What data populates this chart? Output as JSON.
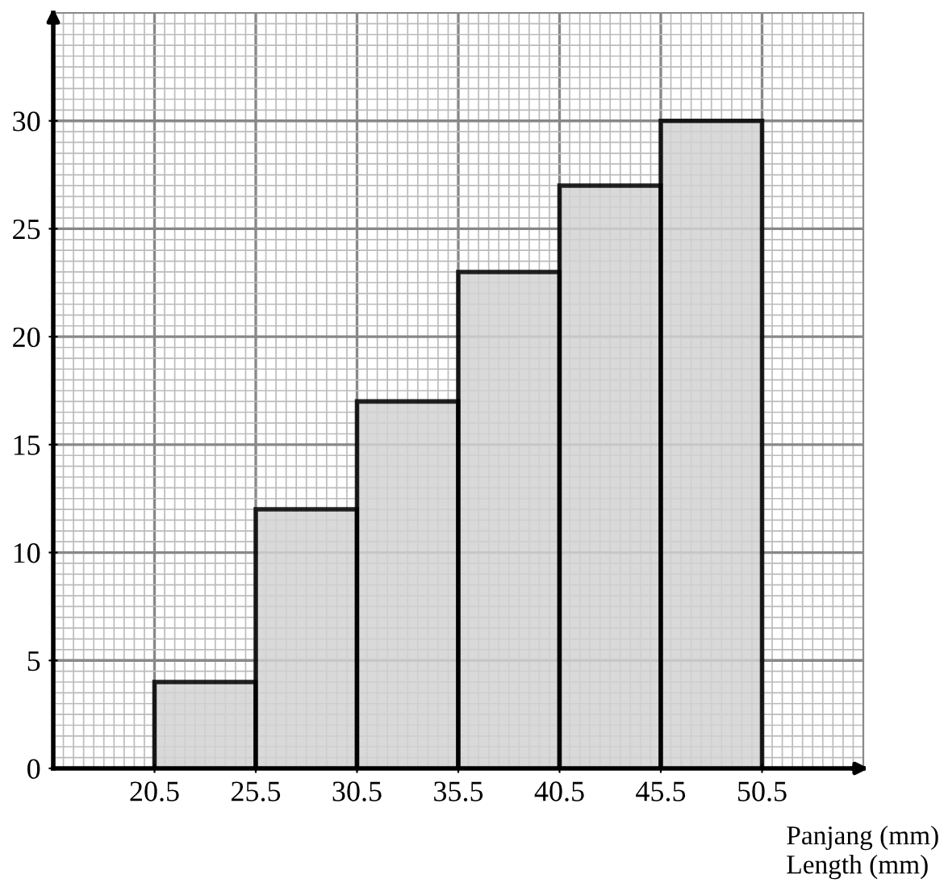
{
  "chart_data": {
    "type": "histogram",
    "xlabel": "Panjang (mm)\nLength (mm)",
    "bins": [
      20.5,
      25.5,
      30.5,
      35.5,
      40.5,
      45.5,
      50.5
    ],
    "values": [
      4,
      12,
      17,
      23,
      27,
      30
    ],
    "color": "#d3d3d3",
    "xlim": [
      15.5,
      55.5
    ],
    "xticks": [
      20.5,
      25.5,
      30.5,
      35.5,
      40.5,
      45.5,
      50.5
    ],
    "ylim": [
      0,
      35
    ],
    "yticks": [
      0,
      5,
      10,
      15,
      20,
      25,
      30
    ],
    "grid": true
  }
}
